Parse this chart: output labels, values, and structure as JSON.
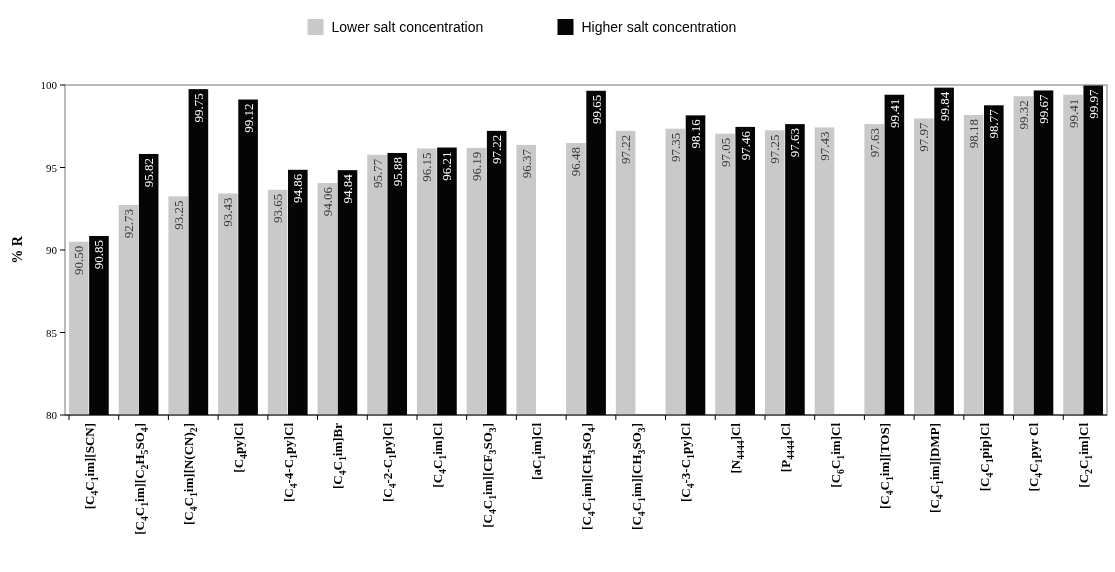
{
  "chart_data": {
    "type": "bar",
    "ylabel": "% R",
    "ylim": [
      80,
      100
    ],
    "yticks": [
      80,
      85,
      90,
      95,
      100
    ],
    "grid": false,
    "legend": "top",
    "categories": [
      "[C$_{4}$C$_{1}$im][SCN]",
      "[C$_{4}$C$_{1}$im][C$_{2}$H$_{5}$SO$_{4}$]",
      "[C$_{4}$C$_{1}$im][N(CN)$_{2}$]",
      "[C$_{4}$py]Cl",
      "[C$_{4}$-4-C$_{1}$py]Cl",
      "[C$_{4}$C$_{1}$im]Br",
      "[C$_{4}$-2-C$_{1}$py]Cl",
      "[C$_{4}$C$_{1}$im]Cl",
      "[C$_{4}$C$_{1}$im][CF$_{3}$SO$_{3}$]",
      "[aC$_{1}$im]Cl",
      "[C$_{4}$C$_{1}$im][CH$_{3}$SO$_{4}$]",
      "[C$_{4}$C$_{1}$im][CH$_{3}$SO$_{3}$]",
      "[C$_{4}$-3-C$_{1}$py]Cl",
      "[N$_{4444}$]Cl",
      "[P$_{4444}$]Cl",
      "[C$_{6}$C$_{1}$im]Cl",
      "[C$_{4}$C$_{1}$im][TOS]",
      "[C$_{4}$C$_{1}$im][DMP]",
      "[C$_{4}$C$_{1}$pip]Cl",
      "[C$_{4}$C$_{1}$pyr Cl",
      "[C$_{2}$C$_{1}$im]Cl"
    ],
    "series": [
      {
        "name": "Lower salt concentration",
        "color": "#c9c9c9",
        "values": [
          90.5,
          92.73,
          93.25,
          93.43,
          93.65,
          94.06,
          95.77,
          96.15,
          96.19,
          96.37,
          96.48,
          97.22,
          97.35,
          97.05,
          97.25,
          97.43,
          97.63,
          97.97,
          98.18,
          99.32,
          99.41
        ],
        "value_labels": [
          "90.50",
          "92.73",
          "93.25",
          "93.43",
          "93.65",
          "94.06",
          "95.77",
          "96.15",
          "96.19",
          "96.37",
          "96.48",
          "97.22",
          "97.35",
          "97.05",
          "97.25",
          "97.43",
          "97.63",
          "97.97",
          "98.18",
          "99.32",
          "99.41"
        ]
      },
      {
        "name": "Higher salt concentration",
        "color": "#050505",
        "values": [
          90.85,
          95.82,
          99.75,
          99.12,
          94.86,
          94.84,
          95.88,
          96.21,
          97.22,
          null,
          99.65,
          null,
          98.16,
          97.46,
          97.63,
          null,
          99.41,
          99.84,
          98.77,
          99.67,
          99.97
        ],
        "value_labels": [
          "90.85",
          "95.82",
          "99.75",
          "99.12",
          "94.86",
          "94.84",
          "95.88",
          "96.21",
          "97.22",
          null,
          "99.65",
          null,
          "98.16",
          "97.46",
          "97.63",
          null,
          "99.41",
          "99.84",
          "98.77",
          "99.67",
          "99.97"
        ]
      }
    ]
  }
}
